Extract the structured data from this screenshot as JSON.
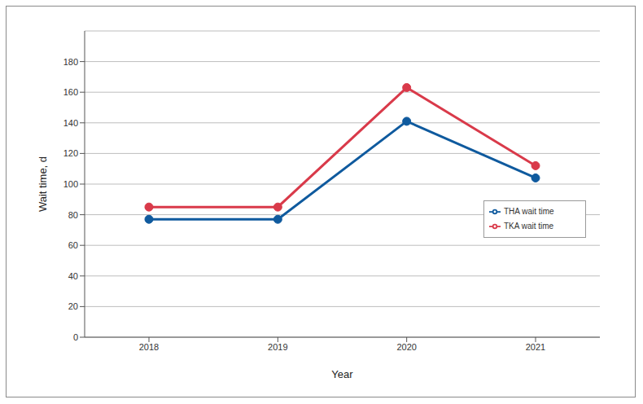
{
  "chart_data": {
    "type": "line",
    "x_label": "Year",
    "y_label": "Wait time, d",
    "categories": [
      "2018",
      "2019",
      "2020",
      "2021"
    ],
    "series": [
      {
        "name": "THA wait time",
        "color": "#0f5a9e",
        "marker": "circle",
        "values": [
          77,
          77,
          141,
          104
        ]
      },
      {
        "name": "TKA wait time",
        "color": "#d93a4a",
        "marker": "circle",
        "values": [
          85,
          85,
          163,
          112
        ]
      }
    ],
    "ylim": [
      0,
      200
    ],
    "yticks": [
      0,
      20,
      40,
      60,
      80,
      100,
      120,
      140,
      160,
      180
    ],
    "grid": true,
    "legend": "right"
  }
}
